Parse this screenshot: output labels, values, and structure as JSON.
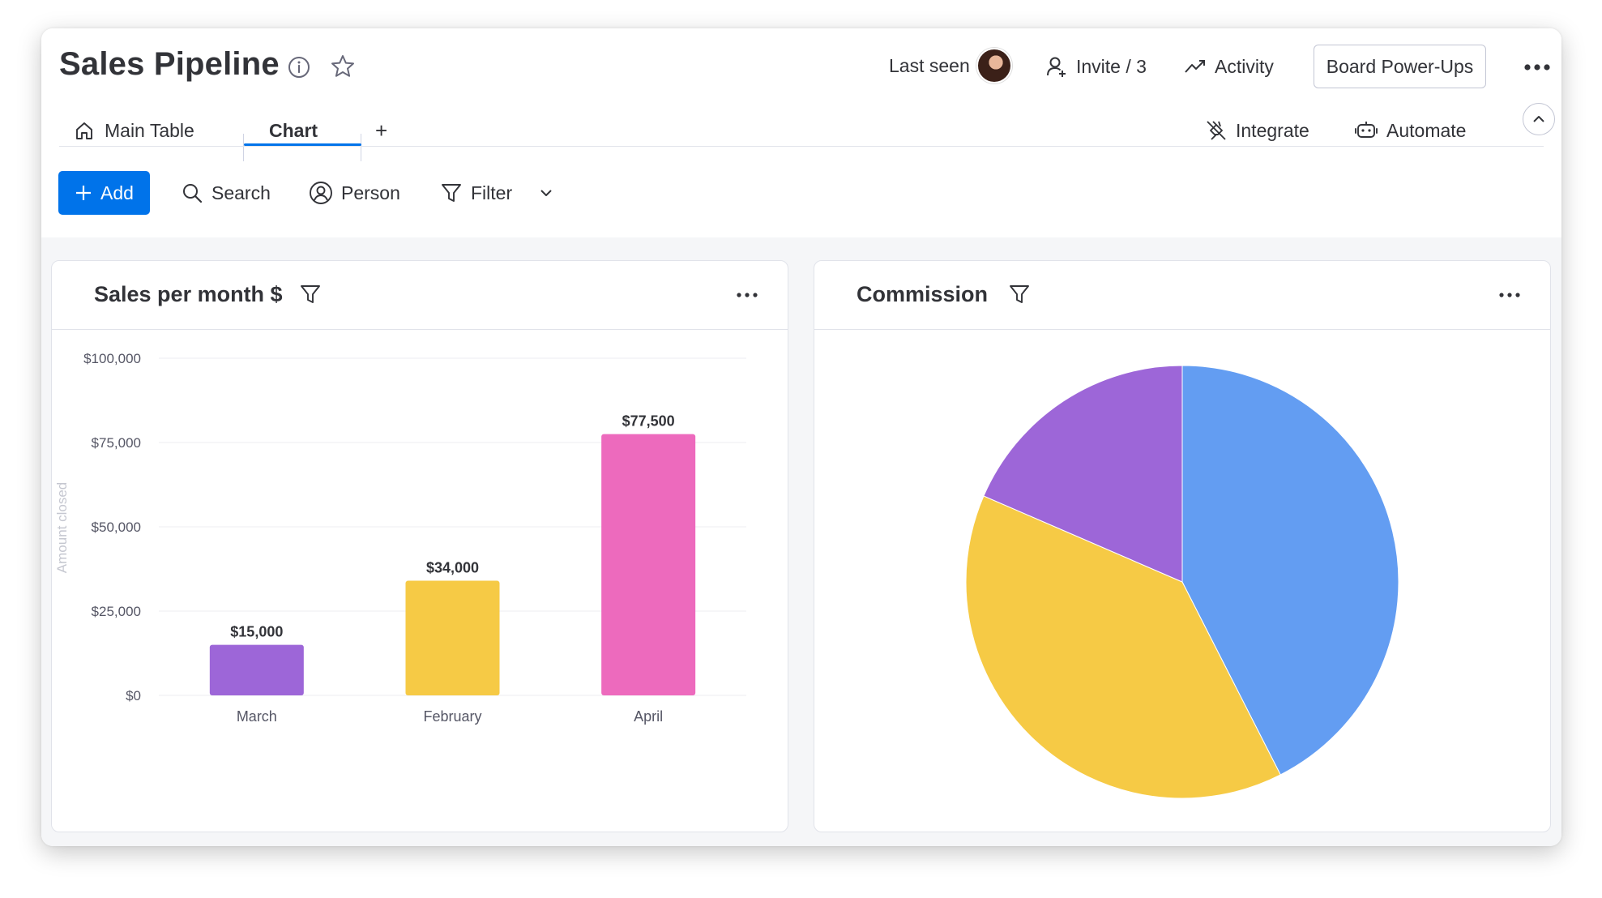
{
  "board": {
    "title": "Sales Pipeline",
    "last_seen_label": "Last seen",
    "invite_label": "Invite / 3",
    "activity_label": "Activity",
    "power_ups_label": "Board Power-Ups"
  },
  "tabs": [
    {
      "label": "Main Table",
      "icon": "home-icon",
      "active": false
    },
    {
      "label": "Chart",
      "icon": "",
      "active": true
    }
  ],
  "tab_add_label": "+",
  "header_actions": {
    "integrate_label": "Integrate",
    "automate_label": "Automate"
  },
  "toolbar": {
    "add_label": "Add",
    "search_label": "Search",
    "person_label": "Person",
    "filter_label": "Filter"
  },
  "widgets": {
    "sales": {
      "title": "Sales per month $"
    },
    "commission": {
      "title": "Commission"
    }
  },
  "colors": {
    "accent": "#0073ea",
    "purple": "#9d66d8",
    "yellow": "#f6ca45",
    "pink": "#ed6abd",
    "blue": "#639df2"
  },
  "chart_data": [
    {
      "type": "bar",
      "title": "Sales per month $",
      "ylabel": "Amount closed",
      "xlabel": "",
      "categories": [
        "March",
        "February",
        "April"
      ],
      "values": [
        15000,
        34000,
        77500
      ],
      "value_labels": [
        "$15,000",
        "$34,000",
        "$77,500"
      ],
      "colors": [
        "#9d66d8",
        "#f6ca45",
        "#ed6abd"
      ],
      "ylim": [
        0,
        100000
      ],
      "yticks": [
        0,
        25000,
        50000,
        75000,
        100000
      ],
      "ytick_labels": [
        "$0",
        "$25,000",
        "$50,000",
        "$75,000",
        "$100,000"
      ],
      "grid": true,
      "legend": "none"
    },
    {
      "type": "pie",
      "title": "Commission",
      "values": [
        42.5,
        39,
        18.5
      ],
      "colors": [
        "#639df2",
        "#f6ca45",
        "#9d66d8"
      ],
      "start": "top",
      "direction": "clockwise",
      "legend": "none"
    }
  ]
}
